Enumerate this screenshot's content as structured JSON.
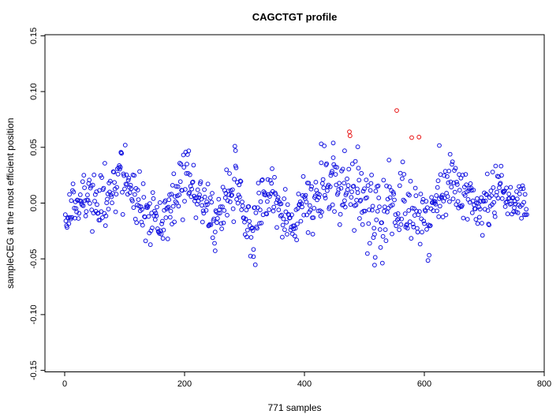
{
  "chart_data": {
    "type": "scatter",
    "title": "CAGCTGT profile",
    "xlabel": "771 samples",
    "ylabel": "sampleCEG at the most efficient position",
    "n_samples": 771,
    "xlim": [
      0,
      800
    ],
    "ylim": [
      -0.15,
      0.15
    ],
    "x_ticks": [
      0,
      200,
      400,
      600,
      800
    ],
    "y_ticks": [
      -0.15,
      -0.1,
      -0.05,
      0.0,
      0.05,
      0.1,
      0.15
    ],
    "grid": false,
    "legend": "none",
    "point_style": "open-circle",
    "colors": {
      "regular_point": "#1111e0",
      "highlight_point": "#e81111",
      "axis": "#000000",
      "text": "#000000",
      "background": "#ffffff"
    },
    "highlight_points": [
      [
        475,
        0.0639
      ],
      [
        476,
        0.0603
      ],
      [
        554,
        0.083
      ],
      [
        579,
        0.0587
      ],
      [
        591,
        0.0592
      ]
    ],
    "notable_points": [
      [
        94,
        0.0452
      ],
      [
        207,
        0.0468
      ],
      [
        251,
        -0.0428
      ],
      [
        285,
        0.047
      ],
      [
        315,
        -0.048
      ],
      [
        428,
        0.0531
      ],
      [
        448,
        0.0539
      ],
      [
        467,
        0.0469
      ],
      [
        489,
        0.0504
      ],
      [
        517,
        -0.0556
      ],
      [
        625,
        0.0516
      ]
    ],
    "generator": {
      "seed": 20771,
      "y_clamp": [
        -0.0555,
        0.0555
      ],
      "mean_curve": [
        [
          1,
          -0.004
        ],
        [
          30,
          0.004
        ],
        [
          60,
          0.0
        ],
        [
          85,
          0.016
        ],
        [
          95,
          0.026
        ],
        [
          110,
          0.01
        ],
        [
          135,
          -0.012
        ],
        [
          155,
          -0.018
        ],
        [
          175,
          -0.003
        ],
        [
          205,
          0.024
        ],
        [
          225,
          0.003
        ],
        [
          250,
          -0.022
        ],
        [
          270,
          0.0
        ],
        [
          285,
          0.024
        ],
        [
          300,
          -0.01
        ],
        [
          313,
          -0.028
        ],
        [
          330,
          0.0
        ],
        [
          348,
          0.008
        ],
        [
          370,
          -0.012
        ],
        [
          385,
          -0.016
        ],
        [
          395,
          0.004
        ],
        [
          410,
          -0.008
        ],
        [
          432,
          0.014
        ],
        [
          448,
          0.022
        ],
        [
          462,
          0.006
        ],
        [
          478,
          0.014
        ],
        [
          492,
          0.012
        ],
        [
          505,
          -0.002
        ],
        [
          517,
          -0.016
        ],
        [
          530,
          -0.01
        ],
        [
          545,
          0.01
        ],
        [
          560,
          -0.002
        ],
        [
          575,
          -0.006
        ],
        [
          592,
          -0.012
        ],
        [
          607,
          -0.02
        ],
        [
          622,
          0.002
        ],
        [
          640,
          0.02
        ],
        [
          656,
          0.012
        ],
        [
          672,
          0.0
        ],
        [
          690,
          -0.01
        ],
        [
          706,
          0.004
        ],
        [
          722,
          0.01
        ],
        [
          742,
          0.004
        ],
        [
          771,
          -0.002
        ]
      ],
      "sd_curve": [
        [
          1,
          0.011
        ],
        [
          60,
          0.012
        ],
        [
          95,
          0.015
        ],
        [
          135,
          0.012
        ],
        [
          175,
          0.011
        ],
        [
          205,
          0.013
        ],
        [
          250,
          0.013
        ],
        [
          285,
          0.015
        ],
        [
          313,
          0.013
        ],
        [
          348,
          0.011
        ],
        [
          385,
          0.012
        ],
        [
          410,
          0.011
        ],
        [
          432,
          0.017
        ],
        [
          462,
          0.016
        ],
        [
          492,
          0.02
        ],
        [
          517,
          0.022
        ],
        [
          545,
          0.019
        ],
        [
          575,
          0.017
        ],
        [
          607,
          0.014
        ],
        [
          640,
          0.013
        ],
        [
          672,
          0.012
        ],
        [
          706,
          0.011
        ],
        [
          742,
          0.009
        ],
        [
          771,
          0.009
        ]
      ]
    }
  }
}
